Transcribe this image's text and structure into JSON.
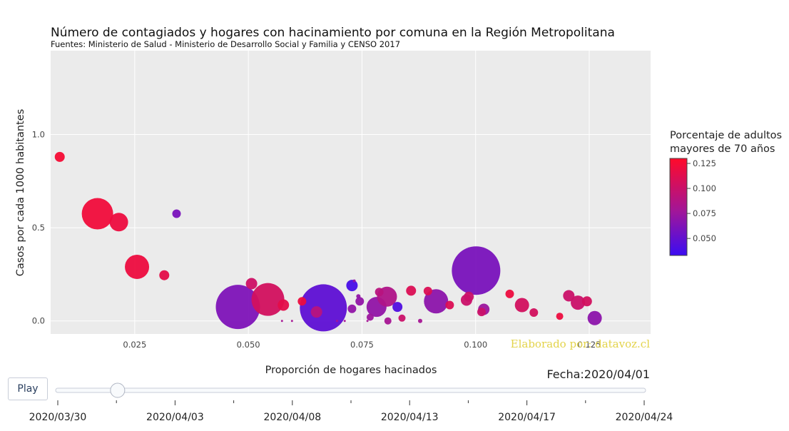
{
  "chart_data": {
    "type": "scatter",
    "title": "Número de contagiados y hogares con hacinamiento por comuna en la Región Metropolitana",
    "subtitle": "Fuentes: Ministerio de Salud - Ministerio de Desarrollo Social y Familia y CENSO 2017",
    "xlabel": "Proporción de hogares hacinados",
    "ylabel": "Casos por cada 1000 habitantes",
    "xlim": [
      0.0065,
      0.1385
    ],
    "ylim": [
      -0.07,
      1.45
    ],
    "x_ticks": [
      0.025,
      0.05,
      0.075,
      0.1,
      0.125
    ],
    "x_tick_labels": [
      "0.025",
      "0.050",
      "0.075",
      "0.100",
      "0.125"
    ],
    "y_ticks": [
      0,
      0.5,
      1
    ],
    "y_tick_labels": [
      "0.0",
      "0.5",
      "1.0"
    ],
    "grid": true,
    "colorbar": {
      "title_lines": [
        "Porcentaje de adultos",
        "mayores de 70 años"
      ],
      "range": [
        0.033,
        0.13
      ],
      "ticks": [
        0.05,
        0.075,
        0.1,
        0.125
      ],
      "tick_labels": [
        "0.050",
        "0.075",
        "0.100",
        "0.125"
      ],
      "color_low": "#3b0cf2",
      "color_mid": "#a0169a",
      "color_high": "#ff0a2a"
    },
    "watermark": "Elaborado por: datavoz.cl",
    "watermark_color": "#e3d34a",
    "date_label": "Fecha:",
    "date_value": "2020/04/01",
    "series": [
      {
        "values": [
          {
            "x": 0.0085,
            "y": 0.88,
            "c": 0.125,
            "s": 7
          },
          {
            "x": 0.0168,
            "y": 0.575,
            "c": 0.122,
            "s": 22
          },
          {
            "x": 0.0215,
            "y": 0.53,
            "c": 0.12,
            "s": 13
          },
          {
            "x": 0.0255,
            "y": 0.29,
            "c": 0.12,
            "s": 17
          },
          {
            "x": 0.0315,
            "y": 0.245,
            "c": 0.115,
            "s": 7
          },
          {
            "x": 0.0342,
            "y": 0.575,
            "c": 0.06,
            "s": 6
          },
          {
            "x": 0.0477,
            "y": 0.075,
            "c": 0.062,
            "s": 31
          },
          {
            "x": 0.0507,
            "y": 0.2,
            "c": 0.102,
            "s": 8
          },
          {
            "x": 0.0543,
            "y": 0.115,
            "c": 0.105,
            "s": 23
          },
          {
            "x": 0.0577,
            "y": 0.085,
            "c": 0.115,
            "s": 8
          },
          {
            "x": 0.0574,
            "y": 0.0,
            "c": 0.08,
            "s": 1.5
          },
          {
            "x": 0.0596,
            "y": 0.0,
            "c": 0.08,
            "s": 1.5
          },
          {
            "x": 0.0618,
            "y": 0.105,
            "c": 0.12,
            "s": 6
          },
          {
            "x": 0.065,
            "y": 0.048,
            "c": 0.09,
            "s": 8
          },
          {
            "x": 0.0665,
            "y": 0.07,
            "c": 0.048,
            "s": 33
          },
          {
            "x": 0.0695,
            "y": 0.0,
            "c": 0.08,
            "s": 1.5
          },
          {
            "x": 0.0712,
            "y": 0.0,
            "c": 0.08,
            "s": 1.5
          },
          {
            "x": 0.0728,
            "y": 0.19,
            "c": 0.038,
            "s": 8
          },
          {
            "x": 0.0728,
            "y": 0.065,
            "c": 0.07,
            "s": 6
          },
          {
            "x": 0.0733,
            "y": 0.215,
            "c": 0.07,
            "s": 2
          },
          {
            "x": 0.0742,
            "y": 0.132,
            "c": 0.07,
            "s": 3
          },
          {
            "x": 0.0745,
            "y": 0.105,
            "c": 0.07,
            "s": 6
          },
          {
            "x": 0.0762,
            "y": 0.0,
            "c": 0.08,
            "s": 1.5
          },
          {
            "x": 0.0768,
            "y": 0.02,
            "c": 0.075,
            "s": 5
          },
          {
            "x": 0.0782,
            "y": 0.075,
            "c": 0.07,
            "s": 14
          },
          {
            "x": 0.0788,
            "y": 0.155,
            "c": 0.09,
            "s": 6
          },
          {
            "x": 0.0805,
            "y": 0.13,
            "c": 0.085,
            "s": 14
          },
          {
            "x": 0.0807,
            "y": 0.0,
            "c": 0.08,
            "s": 5
          },
          {
            "x": 0.0828,
            "y": 0.075,
            "c": 0.042,
            "s": 7
          },
          {
            "x": 0.0838,
            "y": 0.015,
            "c": 0.1,
            "s": 5
          },
          {
            "x": 0.0858,
            "y": 0.162,
            "c": 0.11,
            "s": 7
          },
          {
            "x": 0.0878,
            "y": 0.0,
            "c": 0.08,
            "s": 3
          },
          {
            "x": 0.0895,
            "y": 0.16,
            "c": 0.11,
            "s": 6
          },
          {
            "x": 0.0913,
            "y": 0.105,
            "c": 0.068,
            "s": 17
          },
          {
            "x": 0.0943,
            "y": 0.085,
            "c": 0.11,
            "s": 6
          },
          {
            "x": 0.098,
            "y": 0.112,
            "c": 0.1,
            "s": 8
          },
          {
            "x": 0.0985,
            "y": 0.13,
            "c": 0.1,
            "s": 7
          },
          {
            "x": 0.1001,
            "y": 0.27,
            "c": 0.06,
            "s": 34
          },
          {
            "x": 0.1013,
            "y": 0.048,
            "c": 0.1,
            "s": 6
          },
          {
            "x": 0.1018,
            "y": 0.062,
            "c": 0.075,
            "s": 8
          },
          {
            "x": 0.1075,
            "y": 0.145,
            "c": 0.12,
            "s": 6
          },
          {
            "x": 0.1102,
            "y": 0.085,
            "c": 0.105,
            "s": 10
          },
          {
            "x": 0.1128,
            "y": 0.045,
            "c": 0.105,
            "s": 6
          },
          {
            "x": 0.1185,
            "y": 0.025,
            "c": 0.12,
            "s": 5
          },
          {
            "x": 0.1205,
            "y": 0.135,
            "c": 0.1,
            "s": 8
          },
          {
            "x": 0.1225,
            "y": 0.098,
            "c": 0.1,
            "s": 10
          },
          {
            "x": 0.1245,
            "y": 0.105,
            "c": 0.105,
            "s": 7
          },
          {
            "x": 0.1262,
            "y": 0.015,
            "c": 0.068,
            "s": 10
          }
        ]
      }
    ]
  },
  "controls": {
    "play_label": "Play",
    "slider_value": "2020/04/01",
    "slider_labels": [
      "2020/03/30",
      "2020/04/03",
      "2020/04/08",
      "2020/04/13",
      "2020/04/17",
      "2020/04/24"
    ],
    "slider_fraction": 0.102
  }
}
